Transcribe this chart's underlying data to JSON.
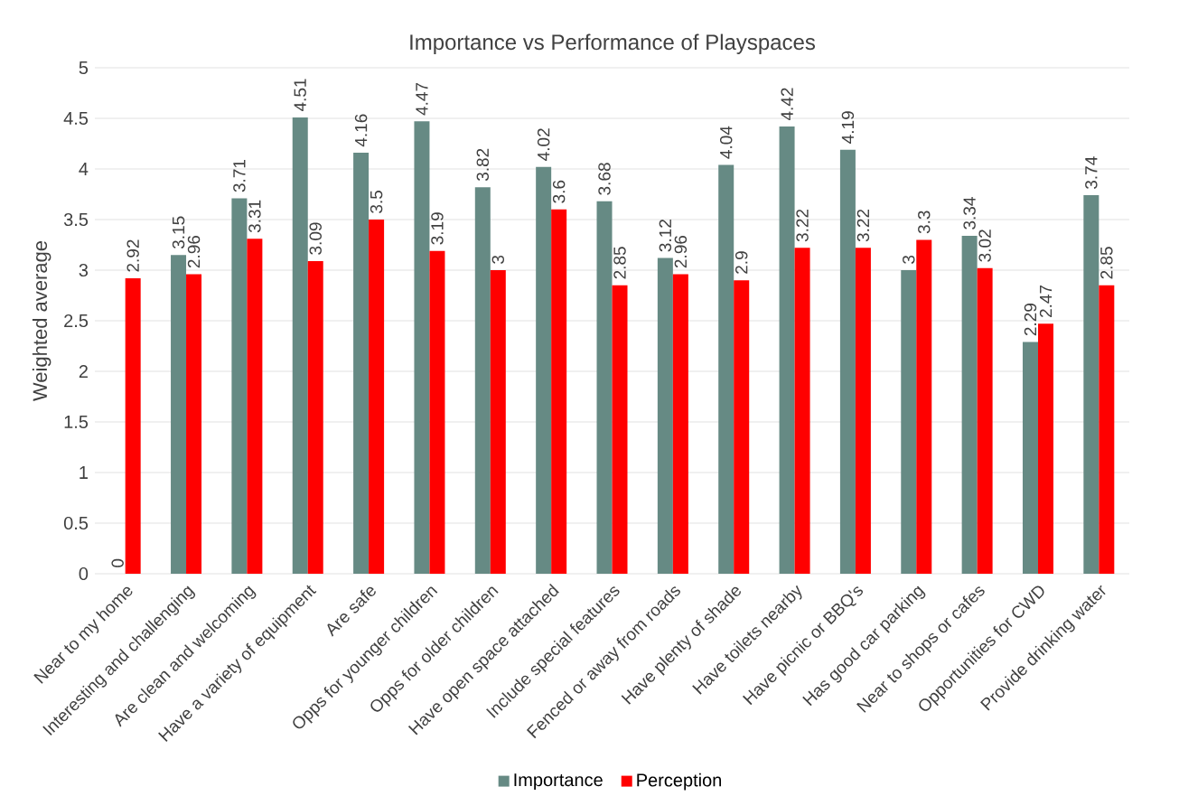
{
  "chart_data": {
    "type": "bar",
    "title": "Importance vs Performance of Playspaces",
    "ylabel": "Weighted average",
    "categories": [
      "Near to my home",
      "Interesting and challenging",
      "Are clean and welcoming",
      "Have a variety of equipment",
      "Are safe",
      "Opps for younger children",
      "Opps for older children",
      "Have open space attached",
      "Include special features",
      "Fenced or away from roads",
      "Have plenty of shade",
      "Have toilets nearby",
      "Have picnic or BBQ's",
      "Has good car parking",
      "Near to shops or cafes",
      "Opportunities for CWD",
      "Provide drinking water"
    ],
    "series": [
      {
        "name": "Importance",
        "color": "#668a84",
        "values": [
          0,
          3.15,
          3.71,
          4.51,
          4.16,
          4.47,
          3.82,
          4.02,
          3.68,
          3.12,
          4.04,
          4.42,
          4.19,
          3,
          3.34,
          2.29,
          3.74
        ]
      },
      {
        "name": "Perception",
        "color": "#ff0000",
        "values": [
          2.92,
          2.96,
          3.31,
          3.09,
          3.5,
          3.19,
          3,
          3.6,
          2.85,
          2.96,
          2.9,
          3.22,
          3.22,
          3.3,
          3.02,
          2.47,
          2.85
        ]
      }
    ],
    "ylim": [
      0,
      5
    ],
    "yticks": [
      0,
      0.5,
      1,
      1.5,
      2,
      2.5,
      3,
      3.5,
      4,
      4.5,
      5
    ],
    "grid": "y",
    "legend": "bottom",
    "data_labels": true
  }
}
